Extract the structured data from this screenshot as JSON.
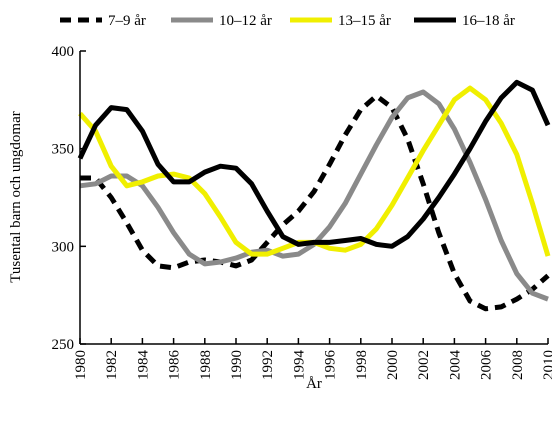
{
  "chart_data": {
    "type": "line",
    "xlabel": "År",
    "ylabel": "Tusental barn och ungdomar",
    "xlim": [
      1980,
      2010
    ],
    "ylim": [
      250,
      400
    ],
    "x_ticks": [
      1980,
      1982,
      1984,
      1986,
      1988,
      1990,
      1992,
      1994,
      1996,
      1998,
      2000,
      2002,
      2004,
      2006,
      2008,
      2010
    ],
    "y_ticks": [
      250,
      300,
      350,
      400
    ],
    "grid": false,
    "legend_position": "top",
    "series": [
      {
        "name": "7–9 år",
        "color": "#000000",
        "dash": "dashed",
        "points": [
          [
            1980,
            335
          ],
          [
            1981,
            335
          ],
          [
            1982,
            325
          ],
          [
            1983,
            312
          ],
          [
            1984,
            298
          ],
          [
            1985,
            290
          ],
          [
            1986,
            289
          ],
          [
            1987,
            292
          ],
          [
            1988,
            293
          ],
          [
            1989,
            292
          ],
          [
            1990,
            290
          ],
          [
            1991,
            293
          ],
          [
            1992,
            302
          ],
          [
            1993,
            311
          ],
          [
            1994,
            318
          ],
          [
            1995,
            328
          ],
          [
            1996,
            342
          ],
          [
            1997,
            357
          ],
          [
            1998,
            370
          ],
          [
            1999,
            377
          ],
          [
            2000,
            371
          ],
          [
            2001,
            355
          ],
          [
            2002,
            332
          ],
          [
            2003,
            307
          ],
          [
            2004,
            286
          ],
          [
            2005,
            272
          ],
          [
            2006,
            268
          ],
          [
            2007,
            269
          ],
          [
            2008,
            273
          ],
          [
            2009,
            278
          ],
          [
            2010,
            285
          ]
        ]
      },
      {
        "name": "10–12 år",
        "color": "#8a8a8a",
        "dash": "solid",
        "points": [
          [
            1980,
            331
          ],
          [
            1981,
            332
          ],
          [
            1982,
            336
          ],
          [
            1983,
            336
          ],
          [
            1984,
            331
          ],
          [
            1985,
            320
          ],
          [
            1986,
            307
          ],
          [
            1987,
            296
          ],
          [
            1988,
            291
          ],
          [
            1989,
            292
          ],
          [
            1990,
            294
          ],
          [
            1991,
            297
          ],
          [
            1992,
            298
          ],
          [
            1993,
            295
          ],
          [
            1994,
            296
          ],
          [
            1995,
            301
          ],
          [
            1996,
            310
          ],
          [
            1997,
            322
          ],
          [
            1998,
            337
          ],
          [
            1999,
            352
          ],
          [
            2000,
            366
          ],
          [
            2001,
            376
          ],
          [
            2002,
            379
          ],
          [
            2003,
            373
          ],
          [
            2004,
            360
          ],
          [
            2005,
            343
          ],
          [
            2006,
            324
          ],
          [
            2007,
            303
          ],
          [
            2008,
            286
          ],
          [
            2009,
            276
          ],
          [
            2010,
            273
          ]
        ]
      },
      {
        "name": "13–15 år",
        "color": "#f0ef00",
        "dash": "solid",
        "points": [
          [
            1980,
            368
          ],
          [
            1981,
            359
          ],
          [
            1982,
            341
          ],
          [
            1983,
            331
          ],
          [
            1984,
            333
          ],
          [
            1985,
            336
          ],
          [
            1986,
            337
          ],
          [
            1987,
            335
          ],
          [
            1988,
            327
          ],
          [
            1989,
            315
          ],
          [
            1990,
            302
          ],
          [
            1991,
            296
          ],
          [
            1992,
            296
          ],
          [
            1993,
            299
          ],
          [
            1994,
            302
          ],
          [
            1995,
            302
          ],
          [
            1996,
            299
          ],
          [
            1997,
            298
          ],
          [
            1998,
            301
          ],
          [
            1999,
            309
          ],
          [
            2000,
            321
          ],
          [
            2001,
            335
          ],
          [
            2002,
            349
          ],
          [
            2003,
            362
          ],
          [
            2004,
            375
          ],
          [
            2005,
            381
          ],
          [
            2006,
            375
          ],
          [
            2007,
            363
          ],
          [
            2008,
            347
          ],
          [
            2009,
            322
          ],
          [
            2010,
            295
          ]
        ]
      },
      {
        "name": "16–18 år",
        "color": "#000000",
        "dash": "solid",
        "points": [
          [
            1980,
            345
          ],
          [
            1981,
            362
          ],
          [
            1982,
            371
          ],
          [
            1983,
            370
          ],
          [
            1984,
            359
          ],
          [
            1985,
            342
          ],
          [
            1986,
            333
          ],
          [
            1987,
            333
          ],
          [
            1988,
            338
          ],
          [
            1989,
            341
          ],
          [
            1990,
            340
          ],
          [
            1991,
            332
          ],
          [
            1992,
            318
          ],
          [
            1993,
            305
          ],
          [
            1994,
            301
          ],
          [
            1995,
            302
          ],
          [
            1996,
            302
          ],
          [
            1997,
            303
          ],
          [
            1998,
            304
          ],
          [
            1999,
            301
          ],
          [
            2000,
            300
          ],
          [
            2001,
            305
          ],
          [
            2002,
            314
          ],
          [
            2003,
            325
          ],
          [
            2004,
            337
          ],
          [
            2005,
            350
          ],
          [
            2006,
            364
          ],
          [
            2007,
            376
          ],
          [
            2008,
            384
          ],
          [
            2009,
            380
          ],
          [
            2010,
            362
          ]
        ]
      }
    ]
  }
}
